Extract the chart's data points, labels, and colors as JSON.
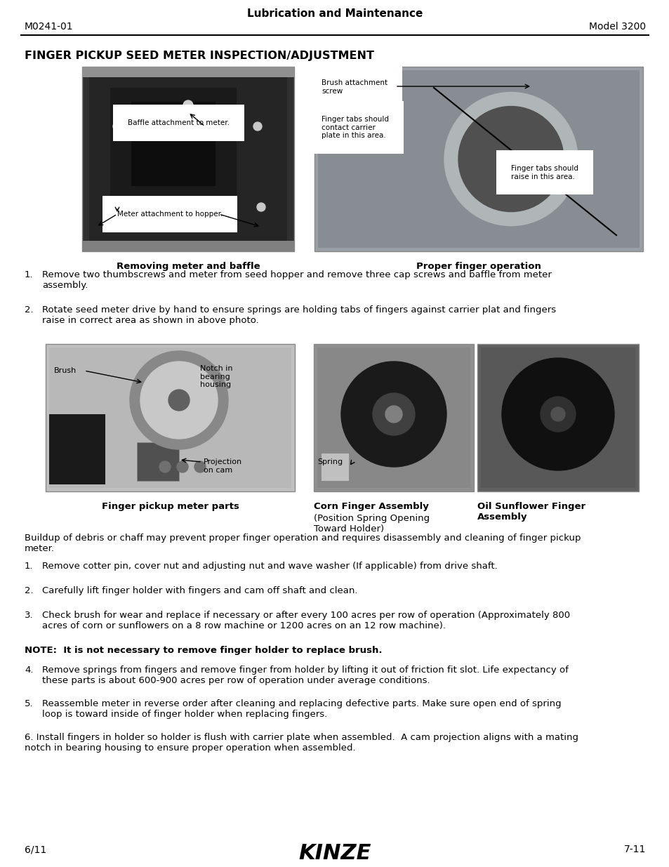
{
  "page_bg": "#ffffff",
  "header_title": "Lubrication and Maintenance",
  "header_left": "M0241-01",
  "header_right": "Model 3200",
  "section_title": "FINGER PICKUP SEED METER INSPECTION/ADJUSTMENT",
  "img1_caption": "Removing meter and baffle",
  "img2_caption": "Proper finger operation",
  "img3_caption": "Finger pickup meter parts",
  "img4_caption": "Corn Finger Assembly",
  "img4_sub": "(Position Spring Opening\nToward Holder)",
  "img5_caption": "Oil Sunflower Finger\nAssembly",
  "para_buildup": "Buildup of debris or chaff may prevent proper finger operation and requires disassembly and cleaning of finger pickup\nmeter.",
  "note_bold": "NOTE:  It is not necessary to remove finger holder to replace brush.",
  "step1": "Remove two thumbscrews and meter from seed hopper and remove three cap screws and baffle from meter\nassembly.",
  "step2": "Rotate seed meter drive by hand to ensure springs are holding tabs of fingers against carrier plat and fingers\nraise in correct area as shown in above photo.",
  "step_b1": "Remove cotter pin, cover nut and adjusting nut and wave washer (If applicable) from drive shaft.",
  "step_b2": "Carefully lift finger holder with fingers and cam off shaft and clean.",
  "step_b3": "Check brush for wear and replace if necessary or after every 100 acres per row of operation (Approximately 800\nacres of corn or sunflowers on a 8 row machine or 1200 acres on an 12 row machine).",
  "step_b4": "Remove springs from fingers and remove finger from holder by lifting it out of friction fit slot. Life expectancy of\nthese parts is about 600-900 acres per row of operation under average conditions.",
  "step_b5": "Reassemble meter in reverse order after cleaning and replacing defective parts. Make sure open end of spring\nloop is toward inside of finger holder when replacing fingers.",
  "step6": "Install fingers in holder so holder is flush with carrier plate when assembled.  A cam projection aligns with a mating\nnotch in bearing housing to ensure proper operation when assembled.",
  "footer_left": "6/11",
  "footer_right": "7-11"
}
